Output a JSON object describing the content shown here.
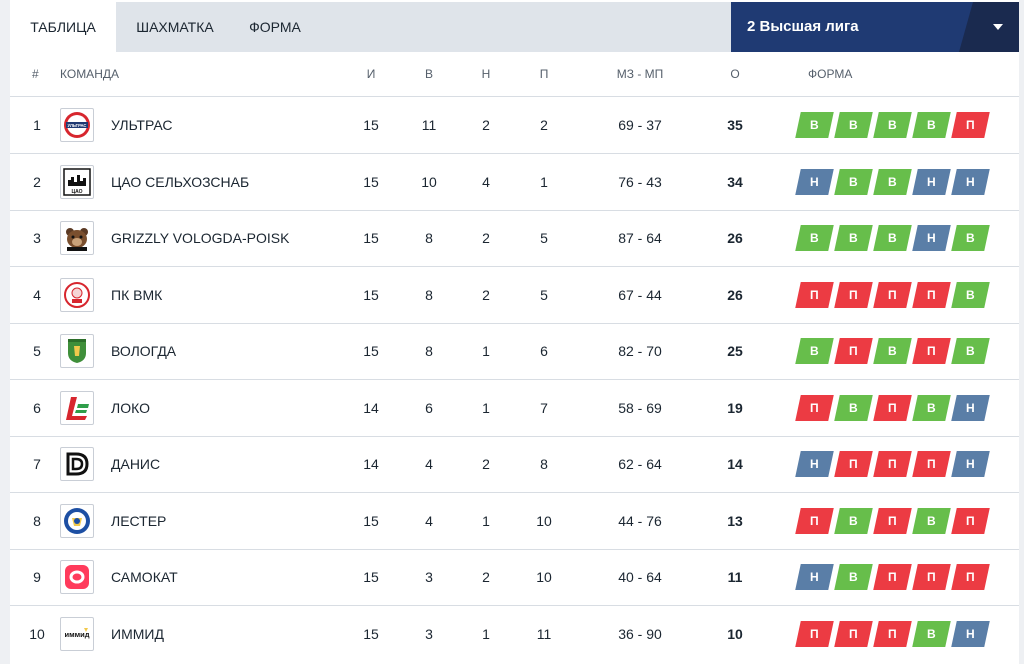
{
  "tabs": {
    "table": "ТАБЛИЦА",
    "grid": "ШАХМАТКА",
    "form": "ФОРМА"
  },
  "league": {
    "selected": "2 Высшая лига"
  },
  "columns": {
    "pos": "#",
    "team": "КОМАНДА",
    "played": "И",
    "won": "В",
    "draw": "Н",
    "lost": "П",
    "goals": "МЗ - МП",
    "points": "О",
    "form": "ФОРМА"
  },
  "rows": [
    {
      "pos": "1",
      "team": "УЛЬТРАС",
      "played": "15",
      "won": "11",
      "draw": "2",
      "lost": "2",
      "goals": "69 - 37",
      "points": "35",
      "form": [
        "В",
        "В",
        "В",
        "В",
        "П"
      ]
    },
    {
      "pos": "2",
      "team": "ЦАО СЕЛЬХОЗСНАБ",
      "played": "15",
      "won": "10",
      "draw": "4",
      "lost": "1",
      "goals": "76 - 43",
      "points": "34",
      "form": [
        "Н",
        "В",
        "В",
        "Н",
        "Н"
      ]
    },
    {
      "pos": "3",
      "team": "GRIZZLY VOLOGDA-POISK",
      "played": "15",
      "won": "8",
      "draw": "2",
      "lost": "5",
      "goals": "87 - 64",
      "points": "26",
      "form": [
        "В",
        "В",
        "В",
        "Н",
        "В"
      ]
    },
    {
      "pos": "4",
      "team": "ПК ВМК",
      "played": "15",
      "won": "8",
      "draw": "2",
      "lost": "5",
      "goals": "67 - 44",
      "points": "26",
      "form": [
        "П",
        "П",
        "П",
        "П",
        "В"
      ]
    },
    {
      "pos": "5",
      "team": "ВОЛОГДА",
      "played": "15",
      "won": "8",
      "draw": "1",
      "lost": "6",
      "goals": "82 - 70",
      "points": "25",
      "form": [
        "В",
        "П",
        "В",
        "П",
        "В"
      ]
    },
    {
      "pos": "6",
      "team": "ЛОКО",
      "played": "14",
      "won": "6",
      "draw": "1",
      "lost": "7",
      "goals": "58 - 69",
      "points": "19",
      "form": [
        "П",
        "В",
        "П",
        "В",
        "Н"
      ]
    },
    {
      "pos": "7",
      "team": "ДАНИС",
      "played": "14",
      "won": "4",
      "draw": "2",
      "lost": "8",
      "goals": "62 - 64",
      "points": "14",
      "form": [
        "Н",
        "П",
        "П",
        "П",
        "Н"
      ]
    },
    {
      "pos": "8",
      "team": "ЛЕСТЕР",
      "played": "15",
      "won": "4",
      "draw": "1",
      "lost": "10",
      "goals": "44 - 76",
      "points": "13",
      "form": [
        "П",
        "В",
        "П",
        "В",
        "П"
      ]
    },
    {
      "pos": "9",
      "team": "САМОКАТ",
      "played": "15",
      "won": "3",
      "draw": "2",
      "lost": "10",
      "goals": "40 - 64",
      "points": "11",
      "form": [
        "Н",
        "В",
        "П",
        "П",
        "П"
      ]
    },
    {
      "pos": "10",
      "team": "ИММИД",
      "played": "15",
      "won": "3",
      "draw": "1",
      "lost": "11",
      "goals": "36 - 90",
      "points": "10",
      "form": [
        "П",
        "П",
        "П",
        "В",
        "Н"
      ]
    }
  ],
  "logo_text": {
    "ultras": "УЛЬТРАС",
    "cao": "ЦАО",
    "immid": "иммид"
  },
  "colors": {
    "win": "#67be4b",
    "loss": "#ec3b43",
    "draw": "#5a7ea7",
    "league_bg": "#1f3a73"
  }
}
